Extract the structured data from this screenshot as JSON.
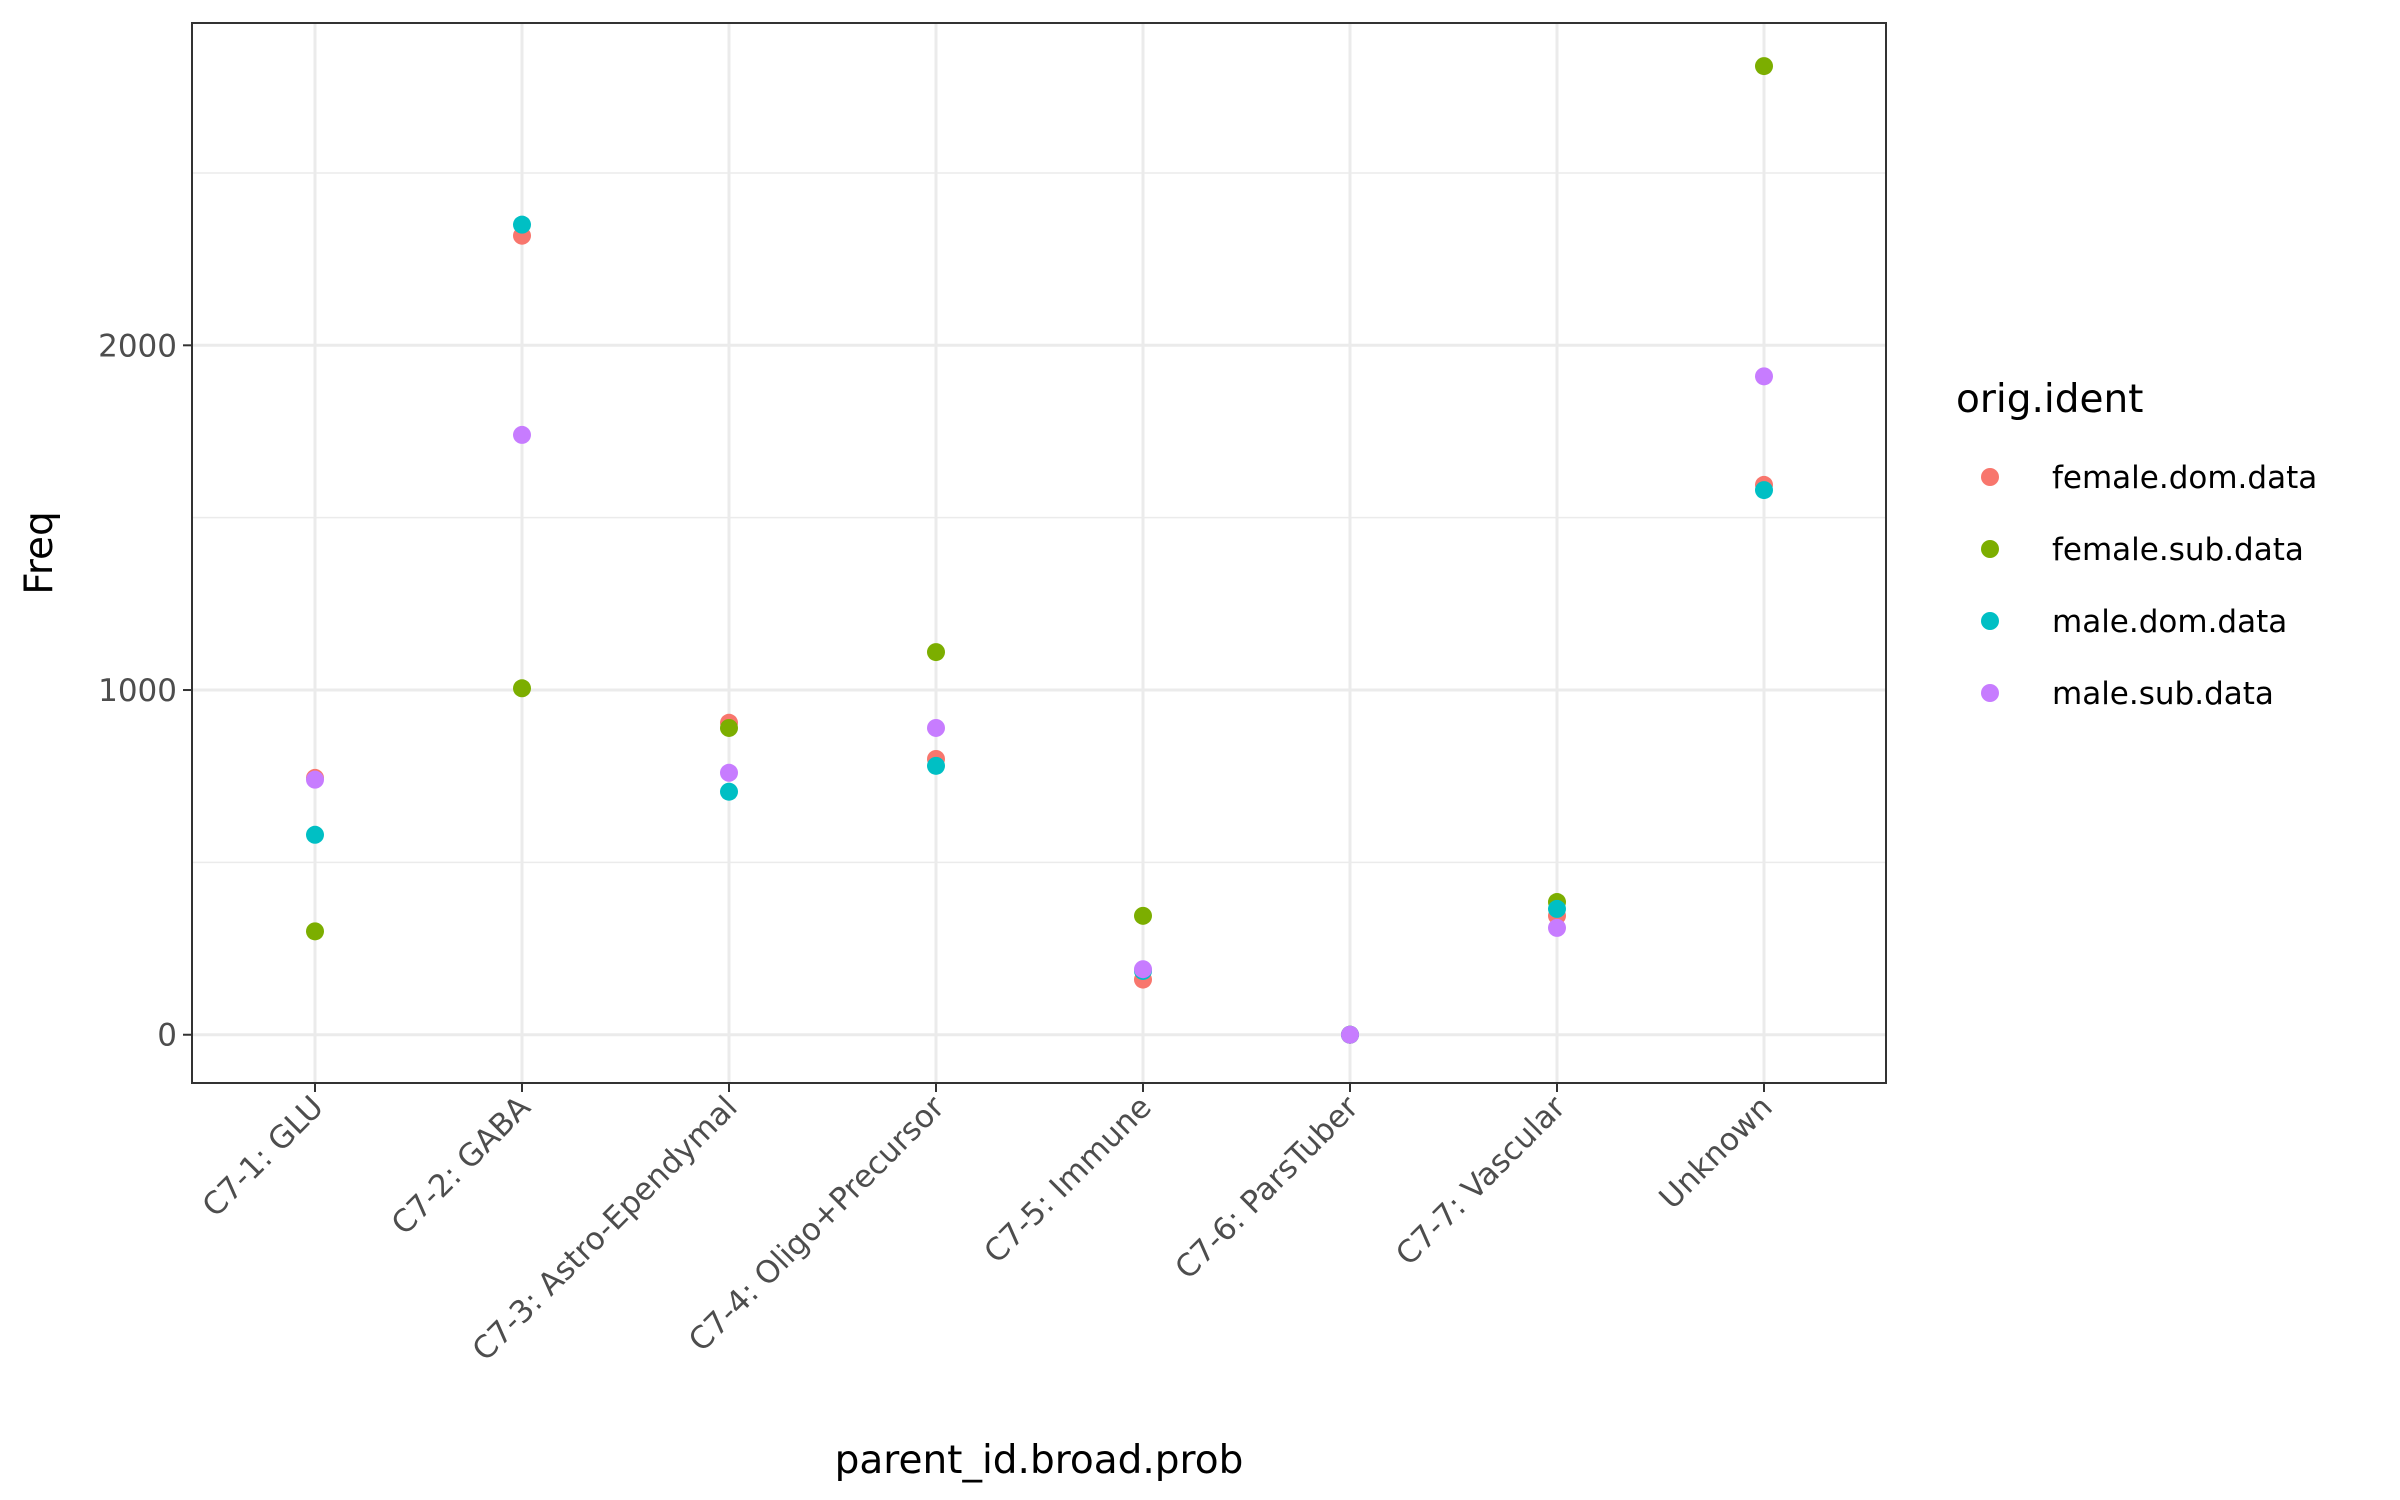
{
  "chart_data": {
    "type": "scatter",
    "xlabel": "parent_id.broad.prob",
    "ylabel": "Freq",
    "categories": [
      "C7-1: GLU",
      "C7-2: GABA",
      "C7-3: Astro-Ependymal",
      "C7-4: Oligo+Precursor",
      "C7-5: Immune",
      "C7-6: ParsTuber",
      "C7-7: Vascular",
      "Unknown"
    ],
    "ylim": [
      -140,
      2935
    ],
    "yticks": [
      0,
      1000,
      2000
    ],
    "grid": true,
    "legend": {
      "title": "orig.ident",
      "position": "right"
    },
    "series": [
      {
        "name": "female.dom.data",
        "color": "#F8766D",
        "values": [
          745,
          2318,
          905,
          800,
          160,
          0,
          345,
          1595
        ]
      },
      {
        "name": "female.sub.data",
        "color": "#7CAE00",
        "values": [
          300,
          1005,
          890,
          1110,
          345,
          0,
          385,
          2810
        ]
      },
      {
        "name": "male.dom.data",
        "color": "#00BFC4",
        "values": [
          580,
          2350,
          705,
          780,
          185,
          0,
          365,
          1580
        ]
      },
      {
        "name": "male.sub.data",
        "color": "#C77CFF",
        "values": [
          740,
          1740,
          760,
          890,
          190,
          0,
          310,
          1910
        ]
      }
    ]
  }
}
